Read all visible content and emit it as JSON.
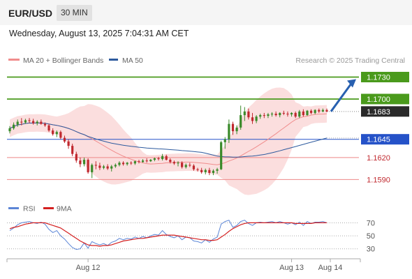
{
  "header": {
    "symbol": "EUR/USD",
    "timeframe": "30 MIN"
  },
  "date_line": "Wednesday, August 13, 2025 7:04:31 AM CET",
  "legend": [
    {
      "label": "MA 20 + Bollinger Bands",
      "color": "#f08c8c"
    },
    {
      "label": "MA 50",
      "color": "#2d5a9e"
    }
  ],
  "watermark": "Research © 2025 Trading Central",
  "colors": {
    "up": "#3a8a2a",
    "down": "#c0282e",
    "target": "#4a9a1c",
    "pivot": "#2552c8",
    "support": "#c0282e",
    "arrow": "#2860b0",
    "rsi": "#5b85d6",
    "rsi_ma": "#d42020",
    "band": "#fbdede"
  },
  "chart_data": [
    {
      "type": "candlestick",
      "symbol": "EUR/USD",
      "timeframe": "30 MIN",
      "x_tick_labels": [
        "Aug 12",
        "Aug 13",
        "Aug 14"
      ],
      "ylim": [
        1.1578,
        1.174
      ],
      "ohlc": [
        [
          1.1656,
          1.1663,
          1.1653,
          1.166
        ],
        [
          1.166,
          1.1668,
          1.1658,
          1.1665
        ],
        [
          1.1665,
          1.1672,
          1.1662,
          1.1669
        ],
        [
          1.1669,
          1.1674,
          1.1664,
          1.1668
        ],
        [
          1.1668,
          1.1673,
          1.1666,
          1.1671
        ],
        [
          1.1671,
          1.1674,
          1.1667,
          1.167
        ],
        [
          1.167,
          1.1673,
          1.1665,
          1.1667
        ],
        [
          1.1667,
          1.1671,
          1.1664,
          1.1669
        ],
        [
          1.1669,
          1.1672,
          1.1665,
          1.1666
        ],
        [
          1.1666,
          1.1668,
          1.1662,
          1.1664
        ],
        [
          1.1664,
          1.1666,
          1.1655,
          1.1657
        ],
        [
          1.1657,
          1.166,
          1.165,
          1.1652
        ],
        [
          1.1652,
          1.1657,
          1.1648,
          1.1655
        ],
        [
          1.1655,
          1.1657,
          1.1645,
          1.1647
        ],
        [
          1.1647,
          1.165,
          1.164,
          1.1642
        ],
        [
          1.1642,
          1.1645,
          1.1632,
          1.1636
        ],
        [
          1.1636,
          1.1639,
          1.1622,
          1.1625
        ],
        [
          1.1625,
          1.1628,
          1.1613,
          1.1616
        ],
        [
          1.1616,
          1.162,
          1.1607,
          1.1611
        ],
        [
          1.1611,
          1.162,
          1.1608,
          1.1617
        ],
        [
          1.1617,
          1.1619,
          1.1598,
          1.16
        ],
        [
          1.16,
          1.1612,
          1.1592,
          1.161
        ],
        [
          1.161,
          1.1615,
          1.1604,
          1.1609
        ],
        [
          1.1609,
          1.1613,
          1.1603,
          1.1606
        ],
        [
          1.1606,
          1.161,
          1.1604,
          1.1608
        ],
        [
          1.1608,
          1.1611,
          1.1603,
          1.1605
        ],
        [
          1.1605,
          1.161,
          1.1601,
          1.1608
        ],
        [
          1.1608,
          1.1612,
          1.1606,
          1.161
        ],
        [
          1.161,
          1.1615,
          1.1608,
          1.1613
        ],
        [
          1.1613,
          1.1615,
          1.1609,
          1.1611
        ],
        [
          1.1611,
          1.1614,
          1.1609,
          1.1613
        ],
        [
          1.1613,
          1.1615,
          1.161,
          1.1612
        ],
        [
          1.1612,
          1.1616,
          1.161,
          1.1615
        ],
        [
          1.1615,
          1.1617,
          1.1612,
          1.1614
        ],
        [
          1.1614,
          1.1618,
          1.1613,
          1.1616
        ],
        [
          1.1616,
          1.1619,
          1.1613,
          1.1615
        ],
        [
          1.1615,
          1.1618,
          1.1614,
          1.1617
        ],
        [
          1.1617,
          1.162,
          1.1615,
          1.1619
        ],
        [
          1.1619,
          1.1621,
          1.1616,
          1.1618
        ],
        [
          1.1618,
          1.1625,
          1.1616,
          1.1622
        ],
        [
          1.1622,
          1.1624,
          1.1616,
          1.1617
        ],
        [
          1.1617,
          1.1619,
          1.1612,
          1.1614
        ],
        [
          1.1614,
          1.1616,
          1.161,
          1.1612
        ],
        [
          1.1612,
          1.1615,
          1.1608,
          1.1613
        ],
        [
          1.1613,
          1.1615,
          1.1605,
          1.1607
        ],
        [
          1.1607,
          1.1612,
          1.1605,
          1.161
        ],
        [
          1.161,
          1.1613,
          1.1607,
          1.1609
        ],
        [
          1.1609,
          1.1611,
          1.1602,
          1.1604
        ],
        [
          1.1604,
          1.1606,
          1.1601,
          1.1603
        ],
        [
          1.1603,
          1.1606,
          1.1598,
          1.16
        ],
        [
          1.16,
          1.1605,
          1.1597,
          1.1603
        ],
        [
          1.1603,
          1.1606,
          1.1596,
          1.1599
        ],
        [
          1.1599,
          1.1604,
          1.1596,
          1.1602
        ],
        [
          1.1602,
          1.1606,
          1.1598,
          1.1604
        ],
        [
          1.1604,
          1.1643,
          1.1603,
          1.1641
        ],
        [
          1.1641,
          1.1648,
          1.1632,
          1.1645
        ],
        [
          1.1645,
          1.1672,
          1.164,
          1.1666
        ],
        [
          1.1666,
          1.1669,
          1.1651,
          1.1656
        ],
        [
          1.1656,
          1.1664,
          1.1652,
          1.1661
        ],
        [
          1.1661,
          1.1691,
          1.1658,
          1.1678
        ],
        [
          1.1678,
          1.1689,
          1.167,
          1.1683
        ],
        [
          1.1683,
          1.1687,
          1.1672,
          1.1675
        ],
        [
          1.1675,
          1.1681,
          1.1666,
          1.167
        ],
        [
          1.167,
          1.1678,
          1.1667,
          1.1676
        ],
        [
          1.1676,
          1.168,
          1.1673,
          1.1678
        ],
        [
          1.1678,
          1.1681,
          1.1674,
          1.1677
        ],
        [
          1.1677,
          1.1681,
          1.1674,
          1.1679
        ],
        [
          1.1679,
          1.1682,
          1.1676,
          1.168
        ],
        [
          1.168,
          1.1683,
          1.1676,
          1.1678
        ],
        [
          1.1678,
          1.1682,
          1.1675,
          1.1681
        ],
        [
          1.1681,
          1.1684,
          1.1678,
          1.168
        ],
        [
          1.168,
          1.1683,
          1.1676,
          1.1679
        ],
        [
          1.1679,
          1.1682,
          1.1676,
          1.1681
        ],
        [
          1.1681,
          1.1683,
          1.1674,
          1.1676
        ],
        [
          1.1676,
          1.1685,
          1.1674,
          1.1683
        ],
        [
          1.1683,
          1.1686,
          1.1676,
          1.1678
        ],
        [
          1.1678,
          1.1685,
          1.1677,
          1.1684
        ],
        [
          1.1684,
          1.1686,
          1.1679,
          1.1681
        ],
        [
          1.1681,
          1.1686,
          1.1679,
          1.1685
        ],
        [
          1.1685,
          1.1687,
          1.1681,
          1.1683
        ],
        [
          1.1683,
          1.1687,
          1.1682,
          1.1685
        ],
        [
          1.1685,
          1.1687,
          1.1682,
          1.1683
        ]
      ],
      "last_price": 1.1683,
      "levels": [
        {
          "label": "1.1730",
          "value": 1.173,
          "role": "target"
        },
        {
          "label": "1.1700",
          "value": 1.17,
          "role": "target"
        },
        {
          "label": "1.1683",
          "value": 1.1683,
          "role": "last"
        },
        {
          "label": "1.1645",
          "value": 1.1645,
          "role": "pivot"
        },
        {
          "label": "1.1620",
          "value": 1.162,
          "role": "support"
        },
        {
          "label": "1.1590",
          "value": 1.159,
          "role": "support"
        }
      ],
      "series": [
        {
          "name": "MA 20 + Bollinger Bands",
          "type": "line+band"
        },
        {
          "name": "MA 50",
          "type": "line"
        }
      ],
      "arrow": {
        "from": 1.1683,
        "to": 1.173,
        "direction": "up"
      }
    },
    {
      "type": "line",
      "series": [
        {
          "name": "RSI",
          "values": [
            58,
            62,
            67,
            70,
            71,
            72,
            70,
            69,
            71,
            68,
            60,
            55,
            58,
            50,
            45,
            38,
            32,
            29,
            30,
            39,
            31,
            41,
            38,
            36,
            38,
            35,
            40,
            42,
            46,
            44,
            46,
            45,
            48,
            46,
            49,
            47,
            50,
            52,
            51,
            58,
            52,
            49,
            47,
            50,
            44,
            48,
            47,
            42,
            41,
            39,
            44,
            40,
            45,
            48,
            68,
            72,
            74,
            63,
            66,
            72,
            74,
            69,
            66,
            70,
            71,
            70,
            71,
            72,
            70,
            72,
            70,
            68,
            70,
            67,
            71,
            66,
            72,
            69,
            71,
            71,
            72,
            70
          ]
        },
        {
          "name": "9MA",
          "values": [
            61,
            63,
            64,
            66,
            68,
            69,
            70,
            70,
            70,
            70,
            68,
            66,
            64,
            62,
            58,
            54,
            50,
            46,
            42,
            39,
            36,
            35,
            35,
            34,
            35,
            35,
            36,
            38,
            40,
            42,
            43,
            44,
            45,
            46,
            46,
            47,
            48,
            49,
            50,
            51,
            51,
            51,
            51,
            50,
            49,
            48,
            47,
            46,
            45,
            44,
            44,
            43,
            43,
            44,
            48,
            52,
            57,
            61,
            64,
            67,
            69,
            70,
            70,
            70,
            70,
            70,
            70,
            70,
            70,
            70,
            70,
            70,
            70,
            69,
            69,
            69,
            69,
            69,
            70,
            70,
            70,
            70
          ]
        }
      ],
      "ylim": [
        20,
        78
      ],
      "y_ticks": [
        30,
        50,
        70
      ]
    }
  ]
}
